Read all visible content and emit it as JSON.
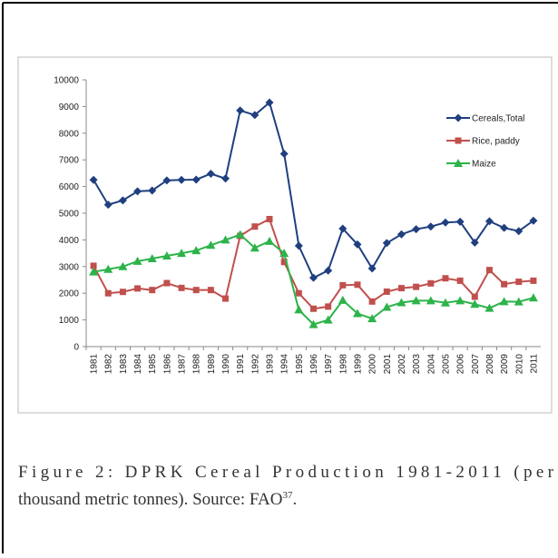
{
  "chart_data": {
    "type": "line",
    "categories": [
      "1981",
      "1982",
      "1983",
      "1984",
      "1985",
      "1986",
      "1987",
      "1988",
      "1989",
      "1990",
      "1991",
      "1992",
      "1993",
      "1994",
      "1995",
      "1996",
      "1997",
      "1998",
      "1999",
      "2000",
      "2001",
      "2002",
      "2003",
      "2004",
      "2005",
      "2006",
      "2007",
      "2008",
      "2009",
      "2010",
      "2011"
    ],
    "series": [
      {
        "name": "Cereals,Total",
        "color": "#1f3f7f",
        "marker": "diamond",
        "values": [
          6250,
          5320,
          5480,
          5820,
          5850,
          6230,
          6250,
          6260,
          6480,
          6300,
          8850,
          8680,
          9150,
          7230,
          3780,
          2580,
          2850,
          4420,
          3830,
          2930,
          3880,
          4210,
          4400,
          4500,
          4650,
          4680,
          3900,
          4700,
          4450,
          4330,
          4720
        ]
      },
      {
        "name": "Rice, paddy",
        "color": "#c0504d",
        "marker": "square",
        "values": [
          3030,
          2000,
          2050,
          2180,
          2120,
          2380,
          2200,
          2120,
          2120,
          1800,
          4150,
          4500,
          4780,
          3170,
          2000,
          1420,
          1500,
          2300,
          2320,
          1690,
          2060,
          2190,
          2240,
          2370,
          2560,
          2470,
          1870,
          2870,
          2340,
          2430,
          2470
        ]
      },
      {
        "name": "Maize",
        "color": "#2db34a",
        "marker": "triangle",
        "values": [
          2800,
          2900,
          3000,
          3200,
          3300,
          3400,
          3500,
          3600,
          3800,
          4000,
          4200,
          3700,
          3950,
          3500,
          1380,
          830,
          1000,
          1740,
          1240,
          1050,
          1480,
          1650,
          1720,
          1720,
          1640,
          1720,
          1590,
          1440,
          1690,
          1680,
          1830
        ]
      }
    ],
    "ylim": [
      0,
      10000
    ],
    "yticks": [
      0,
      1000,
      2000,
      3000,
      4000,
      5000,
      6000,
      7000,
      8000,
      9000,
      10000
    ],
    "grid": false,
    "legend": "right"
  },
  "caption": {
    "line1": "Figure 2: DPRK Cereal Production 1981-2011 (per",
    "line2": "thousand metric tonnes). Source: FAO",
    "superscript": "37",
    "tail": "."
  }
}
